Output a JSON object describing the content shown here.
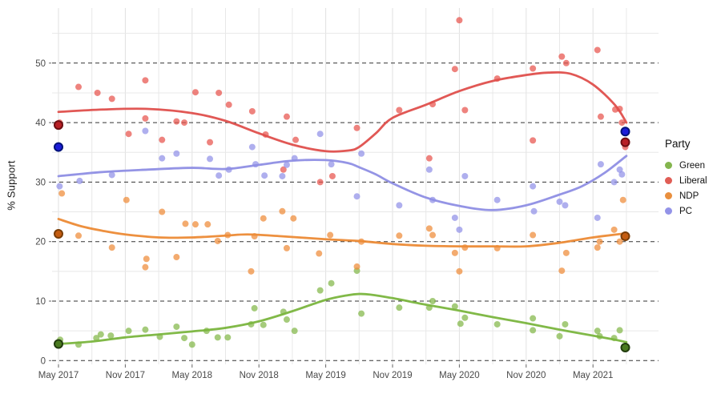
{
  "chart_data": {
    "type": "scatter",
    "title": "",
    "subtitle": "",
    "xlabel": "",
    "ylabel": "% Support",
    "grid": "minor solid light-gray every 5 units and 3 months; major horizontal lines dashed black every 10 units",
    "legend_position": "right",
    "x_ticks": [
      "May 2017",
      "Nov 2017",
      "May 2018",
      "Nov 2018",
      "May 2019",
      "Nov 2019",
      "May 2020",
      "Nov 2020",
      "May 2021"
    ],
    "x_tick_months": [
      0,
      6,
      12,
      18,
      24,
      30,
      36,
      42,
      48
    ],
    "y_ticks": [
      0,
      10,
      20,
      30,
      40,
      50
    ],
    "ylim": [
      0,
      59
    ],
    "xlim_months": [
      0,
      54
    ],
    "x_unit": "months since May 2017",
    "legend": {
      "title": "Party",
      "items": [
        {
          "label": "Green",
          "color": "#84b54e"
        },
        {
          "label": "Liberal",
          "color": "#e05d55"
        },
        {
          "label": "NDP",
          "color": "#e98f3e"
        },
        {
          "label": "PC",
          "color": "#9393e8"
        }
      ]
    },
    "series": [
      {
        "name": "Green",
        "dot_color": "#82b748",
        "line_color": "#7ab53e",
        "election_fill": "#4a7a20",
        "election_stroke": "#223c0e",
        "points": [
          [
            0.15,
            3.5
          ],
          [
            1.8,
            2.7
          ],
          [
            3.4,
            3.8
          ],
          [
            3.8,
            4.4
          ],
          [
            4.7,
            4.2
          ],
          [
            6.3,
            5.0
          ],
          [
            7.8,
            5.2
          ],
          [
            9.1,
            4.0
          ],
          [
            10.6,
            5.7
          ],
          [
            11.3,
            3.8
          ],
          [
            12.0,
            2.7
          ],
          [
            13.3,
            5.0
          ],
          [
            14.3,
            3.9
          ],
          [
            15.2,
            3.9
          ],
          [
            17.3,
            6.1
          ],
          [
            17.6,
            8.8
          ],
          [
            18.4,
            6.0
          ],
          [
            20.2,
            8.2
          ],
          [
            20.5,
            6.9
          ],
          [
            21.2,
            5.0
          ],
          [
            23.5,
            11.8
          ],
          [
            24.5,
            13.0
          ],
          [
            26.8,
            15.1
          ],
          [
            27.2,
            7.9
          ],
          [
            30.6,
            8.9
          ],
          [
            33.3,
            8.9
          ],
          [
            33.6,
            10.0
          ],
          [
            35.6,
            9.1
          ],
          [
            36.1,
            6.2
          ],
          [
            36.5,
            7.2
          ],
          [
            39.4,
            6.1
          ],
          [
            42.6,
            7.1
          ],
          [
            42.6,
            5.1
          ],
          [
            45.0,
            4.1
          ],
          [
            45.5,
            6.1
          ],
          [
            48.4,
            5.0
          ],
          [
            48.6,
            4.1
          ],
          [
            49.9,
            3.8
          ],
          [
            50.4,
            5.1
          ]
        ],
        "trend": [
          [
            0,
            2.8
          ],
          [
            3,
            3.2
          ],
          [
            6,
            3.9
          ],
          [
            9,
            4.4
          ],
          [
            12,
            4.9
          ],
          [
            15,
            5.5
          ],
          [
            18,
            6.6
          ],
          [
            21,
            8.3
          ],
          [
            24,
            10.2
          ],
          [
            26,
            11.0
          ],
          [
            27,
            11.2
          ],
          [
            28,
            11.1
          ],
          [
            30,
            10.5
          ],
          [
            33,
            9.4
          ],
          [
            36,
            8.4
          ],
          [
            39,
            7.3
          ],
          [
            42,
            6.3
          ],
          [
            45,
            5.2
          ],
          [
            48,
            4.2
          ],
          [
            50,
            3.5
          ],
          [
            51,
            3.1
          ]
        ],
        "elections": [
          [
            0,
            2.8
          ],
          [
            50.9,
            2.2
          ]
        ]
      },
      {
        "name": "Liberal",
        "dot_color": "#e8534c",
        "line_color": "#df4f4c",
        "election_fill": "#b82025",
        "election_stroke": "#6e0f12",
        "points": [
          [
            0.1,
            40.0
          ],
          [
            1.8,
            46.0
          ],
          [
            3.5,
            45.0
          ],
          [
            4.8,
            44.0
          ],
          [
            6.3,
            38.1
          ],
          [
            7.8,
            47.1
          ],
          [
            7.8,
            40.7
          ],
          [
            9.3,
            37.1
          ],
          [
            10.6,
            40.2
          ],
          [
            11.3,
            40.0
          ],
          [
            12.3,
            45.1
          ],
          [
            13.6,
            36.7
          ],
          [
            14.4,
            45.0
          ],
          [
            15.3,
            43.0
          ],
          [
            17.4,
            41.9
          ],
          [
            18.6,
            38.0
          ],
          [
            20.2,
            32.1
          ],
          [
            20.5,
            41.0
          ],
          [
            21.3,
            37.1
          ],
          [
            23.5,
            30.0
          ],
          [
            24.6,
            31.0
          ],
          [
            26.8,
            39.1
          ],
          [
            30.6,
            42.1
          ],
          [
            33.3,
            34.0
          ],
          [
            33.6,
            43.1
          ],
          [
            35.6,
            49.0
          ],
          [
            36.0,
            57.2
          ],
          [
            36.5,
            42.1
          ],
          [
            39.4,
            47.4
          ],
          [
            42.6,
            49.1
          ],
          [
            42.6,
            37.0
          ],
          [
            45.2,
            51.1
          ],
          [
            45.6,
            50.0
          ],
          [
            48.4,
            52.2
          ],
          [
            48.7,
            41.0
          ],
          [
            50.0,
            42.2
          ],
          [
            50.4,
            42.3
          ],
          [
            50.6,
            40.0
          ],
          [
            50.9,
            35.9
          ]
        ],
        "trend": [
          [
            0,
            41.8
          ],
          [
            4,
            42.2
          ],
          [
            8,
            42.3
          ],
          [
            12,
            41.6
          ],
          [
            15,
            40.3
          ],
          [
            18,
            38.2
          ],
          [
            21,
            36.3
          ],
          [
            24,
            35.2
          ],
          [
            26,
            35.3
          ],
          [
            27,
            35.9
          ],
          [
            28.5,
            38.2
          ],
          [
            30,
            40.8
          ],
          [
            33,
            43.0
          ],
          [
            36,
            45.3
          ],
          [
            39,
            47.0
          ],
          [
            42,
            48.0
          ],
          [
            44,
            48.4
          ],
          [
            46,
            48.2
          ],
          [
            48,
            46.4
          ],
          [
            50,
            42.9
          ],
          [
            51,
            40.0
          ]
        ],
        "elections": [
          [
            0,
            39.6
          ],
          [
            50.9,
            36.7
          ]
        ]
      },
      {
        "name": "NDP",
        "dot_color": "#ee8b38",
        "line_color": "#ec8a35",
        "election_fill": "#c45c10",
        "election_stroke": "#7a3d06",
        "points": [
          [
            0.3,
            28.1
          ],
          [
            1.8,
            21.0
          ],
          [
            4.8,
            19.0
          ],
          [
            6.1,
            27.0
          ],
          [
            7.8,
            15.7
          ],
          [
            7.9,
            17.1
          ],
          [
            9.3,
            25.0
          ],
          [
            10.6,
            17.4
          ],
          [
            11.4,
            23.0
          ],
          [
            12.3,
            22.9
          ],
          [
            13.4,
            22.9
          ],
          [
            14.3,
            20.1
          ],
          [
            15.2,
            21.1
          ],
          [
            17.3,
            15.0
          ],
          [
            17.6,
            20.9
          ],
          [
            18.4,
            23.9
          ],
          [
            20.1,
            25.1
          ],
          [
            20.5,
            18.9
          ],
          [
            21.1,
            23.9
          ],
          [
            23.4,
            18.0
          ],
          [
            24.4,
            21.1
          ],
          [
            26.8,
            15.8
          ],
          [
            27.2,
            20.0
          ],
          [
            30.6,
            21.0
          ],
          [
            33.3,
            22.2
          ],
          [
            33.6,
            21.1
          ],
          [
            35.6,
            18.1
          ],
          [
            36.0,
            15.0
          ],
          [
            36.5,
            19.0
          ],
          [
            39.4,
            18.9
          ],
          [
            42.6,
            21.1
          ],
          [
            45.2,
            15.1
          ],
          [
            45.6,
            18.1
          ],
          [
            48.4,
            19.0
          ],
          [
            48.6,
            20.0
          ],
          [
            49.9,
            22.0
          ],
          [
            50.4,
            20.0
          ],
          [
            50.7,
            27.0
          ]
        ],
        "trend": [
          [
            0,
            23.8
          ],
          [
            2,
            22.6
          ],
          [
            4,
            21.8
          ],
          [
            6,
            21.2
          ],
          [
            9,
            20.7
          ],
          [
            12,
            20.7
          ],
          [
            15,
            21.0
          ],
          [
            17,
            21.2
          ],
          [
            20,
            20.9
          ],
          [
            24,
            20.4
          ],
          [
            27,
            20.1
          ],
          [
            30,
            19.6
          ],
          [
            33,
            19.3
          ],
          [
            36,
            19.2
          ],
          [
            39,
            19.2
          ],
          [
            42,
            19.2
          ],
          [
            45,
            19.8
          ],
          [
            48,
            20.7
          ],
          [
            51,
            21.4
          ]
        ],
        "elections": [
          [
            0,
            21.3
          ],
          [
            50.9,
            20.9
          ]
        ]
      },
      {
        "name": "PC",
        "dot_color": "#9090e8",
        "line_color": "#8e8ee4",
        "election_fill": "#1c1cd8",
        "election_stroke": "#00127a",
        "points": [
          [
            0.1,
            29.3
          ],
          [
            1.9,
            30.2
          ],
          [
            4.8,
            31.2
          ],
          [
            7.8,
            38.6
          ],
          [
            9.3,
            34.0
          ],
          [
            10.6,
            34.8
          ],
          [
            13.6,
            33.9
          ],
          [
            14.4,
            31.1
          ],
          [
            15.3,
            32.1
          ],
          [
            17.4,
            35.9
          ],
          [
            17.7,
            33.0
          ],
          [
            18.5,
            31.1
          ],
          [
            20.1,
            31.0
          ],
          [
            20.5,
            32.9
          ],
          [
            21.2,
            34.0
          ],
          [
            23.5,
            38.1
          ],
          [
            24.5,
            33.0
          ],
          [
            26.8,
            27.6
          ],
          [
            27.2,
            34.8
          ],
          [
            30.6,
            26.1
          ],
          [
            33.3,
            32.1
          ],
          [
            33.6,
            27.0
          ],
          [
            35.6,
            24.0
          ],
          [
            36.0,
            22.0
          ],
          [
            36.5,
            31.0
          ],
          [
            39.4,
            27.0
          ],
          [
            42.6,
            29.3
          ],
          [
            42.7,
            25.1
          ],
          [
            45.0,
            26.7
          ],
          [
            45.5,
            26.1
          ],
          [
            48.4,
            24.0
          ],
          [
            48.7,
            33.0
          ],
          [
            49.9,
            30.0
          ],
          [
            50.4,
            32.1
          ],
          [
            50.6,
            31.3
          ]
        ],
        "trend": [
          [
            0,
            31.0
          ],
          [
            4,
            31.7
          ],
          [
            8,
            32.1
          ],
          [
            12,
            32.4
          ],
          [
            15,
            32.2
          ],
          [
            18,
            32.9
          ],
          [
            21,
            33.6
          ],
          [
            24,
            33.7
          ],
          [
            26,
            33.2
          ],
          [
            27,
            32.5
          ],
          [
            28.5,
            31.3
          ],
          [
            30,
            29.8
          ],
          [
            33,
            27.4
          ],
          [
            36,
            26.0
          ],
          [
            39,
            25.3
          ],
          [
            42,
            26.1
          ],
          [
            45,
            27.9
          ],
          [
            47,
            29.3
          ],
          [
            49,
            31.5
          ],
          [
            51,
            34.4
          ]
        ],
        "elections": [
          [
            0,
            35.9
          ],
          [
            50.9,
            38.5
          ]
        ]
      }
    ]
  },
  "style_colors": {
    "grid_minor": "#e8e8e8",
    "grid_major_vertical": "#e0e0e0",
    "dashed_line": "#333333",
    "tick_label": "#4a4a4a",
    "tick_mark": "#666666"
  }
}
